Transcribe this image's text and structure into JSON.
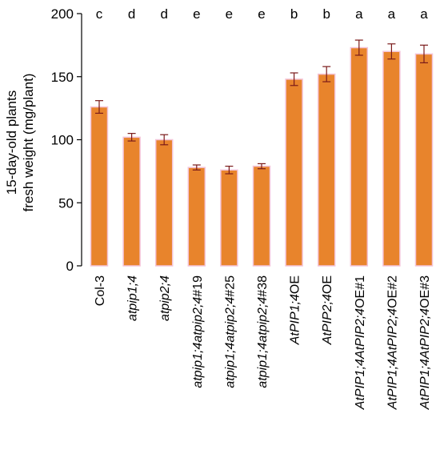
{
  "chart_data": {
    "type": "bar",
    "ylabel_line1": "15-day-old plants",
    "ylabel_line2": "fresh weight (mg/plant)",
    "ylim": [
      0,
      200
    ],
    "yticks": [
      "0",
      "50",
      "100",
      "150",
      "200"
    ],
    "ytick_values": [
      0,
      50,
      100,
      150,
      200
    ],
    "categories": [
      "Col-3",
      "atpip1;4",
      "atpip2;4",
      "atpip1;4atpip2;4#19",
      "atpip1;4atpip2;4#25",
      "atpip1;4atpip2;4#38",
      "AtPIP1;4OE",
      "AtPIP2;4OE",
      "AtPIP1;4AtPIP2;4OE#1",
      "AtPIP1;4AtPIP2;4OE#2",
      "AtPIP1;4AtPIP2;4OE#3"
    ],
    "category_italic_part": [
      "",
      "atpip1;4",
      "atpip2;4",
      "atpip1;4atpip2;4",
      "atpip1;4atpip2;4",
      "atpip1;4atpip2;4",
      "AtPIP1;4",
      "AtPIP2;4",
      "AtPIP1;4AtPIP2;4",
      "AtPIP1;4AtPIP2;4",
      "AtPIP1;4AtPIP2;4"
    ],
    "category_plain_part": [
      "Col-3",
      "",
      "",
      "#19",
      "#25",
      "#38",
      "OE",
      "OE",
      "OE#1",
      "OE#2",
      "OE#3"
    ],
    "values": [
      126,
      102,
      100,
      78,
      76,
      79,
      148,
      152,
      173,
      170,
      168
    ],
    "errors": [
      5,
      3,
      4,
      2,
      3,
      2,
      5,
      6,
      6,
      6,
      7
    ],
    "significance_letters": [
      "c",
      "d",
      "d",
      "e",
      "e",
      "e",
      "b",
      "b",
      "a",
      "a",
      "a"
    ],
    "bar_color": "#e8842c",
    "bar_edge_color": "#f4c4d8",
    "error_color": "#7a1a1a",
    "grid": false
  }
}
